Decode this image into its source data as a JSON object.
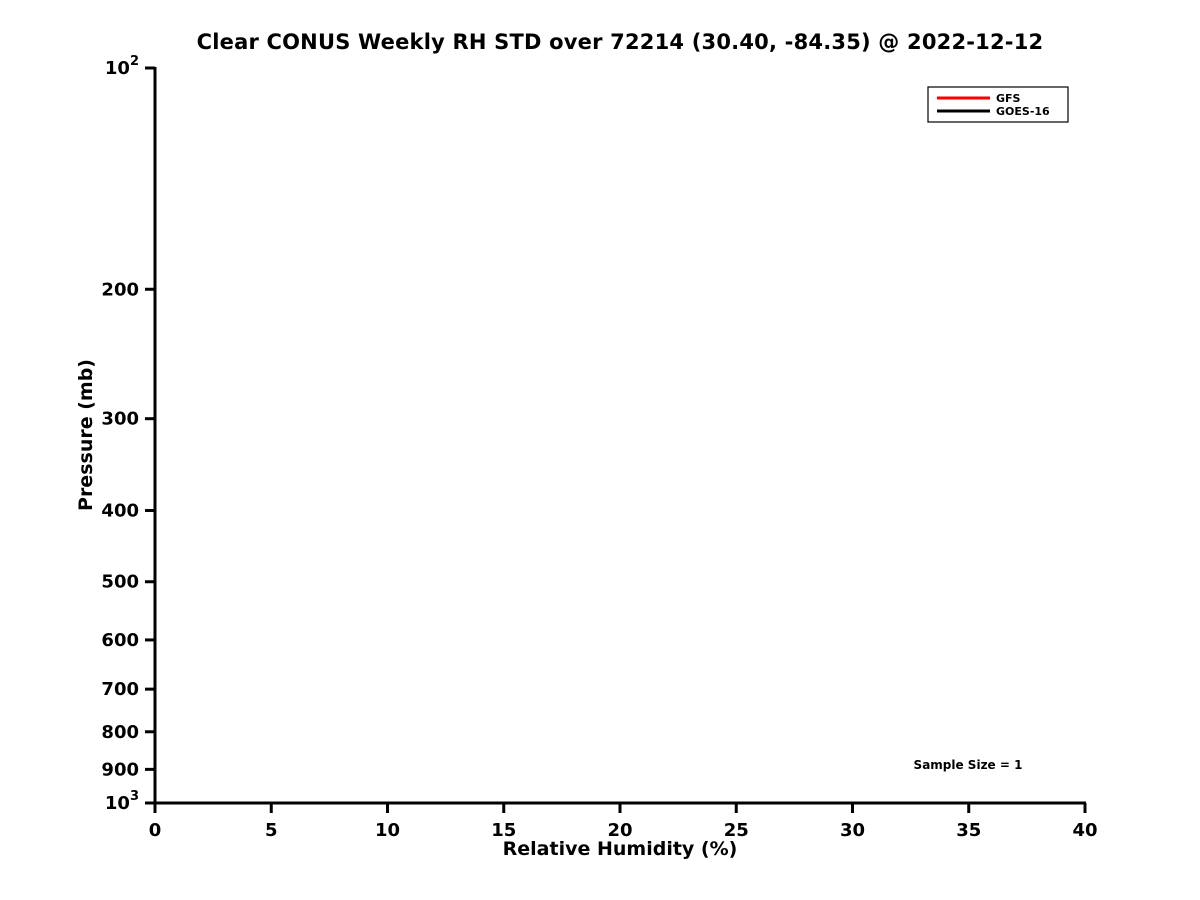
{
  "chart_data": {
    "type": "line",
    "title": "Clear CONUS Weekly RH STD over 72214 (30.40, -84.35) @ 2022-12-12",
    "xlabel": "Relative Humidity (%)",
    "ylabel": "Pressure (mb)",
    "xlim": [
      0,
      40
    ],
    "x_ticks": [
      0,
      5,
      10,
      15,
      20,
      25,
      30,
      35,
      40
    ],
    "y_scale": "log10",
    "ylim": [
      100,
      1000
    ],
    "y_ticks": [
      {
        "value": 100,
        "label": "10^2"
      },
      {
        "value": 200,
        "label": "200"
      },
      {
        "value": 300,
        "label": "300"
      },
      {
        "value": 400,
        "label": "400"
      },
      {
        "value": 500,
        "label": "500"
      },
      {
        "value": 600,
        "label": "600"
      },
      {
        "value": 700,
        "label": "700"
      },
      {
        "value": 800,
        "label": "800"
      },
      {
        "value": 900,
        "label": "900"
      },
      {
        "value": 1000,
        "label": "10^3"
      }
    ],
    "grid": false,
    "legend": {
      "position": "upper right",
      "entries": [
        "GFS",
        "GOES-16"
      ]
    },
    "series": [
      {
        "name": "GFS",
        "color": "#ff0000",
        "x": [],
        "y": []
      },
      {
        "name": "GOES-16",
        "color": "#000000",
        "x": [],
        "y": []
      }
    ],
    "annotations": [
      {
        "text": "Sample Size = 1",
        "x": 35,
        "y": 890
      }
    ],
    "axis_color": "#000000",
    "background_color": "#ffffff"
  }
}
